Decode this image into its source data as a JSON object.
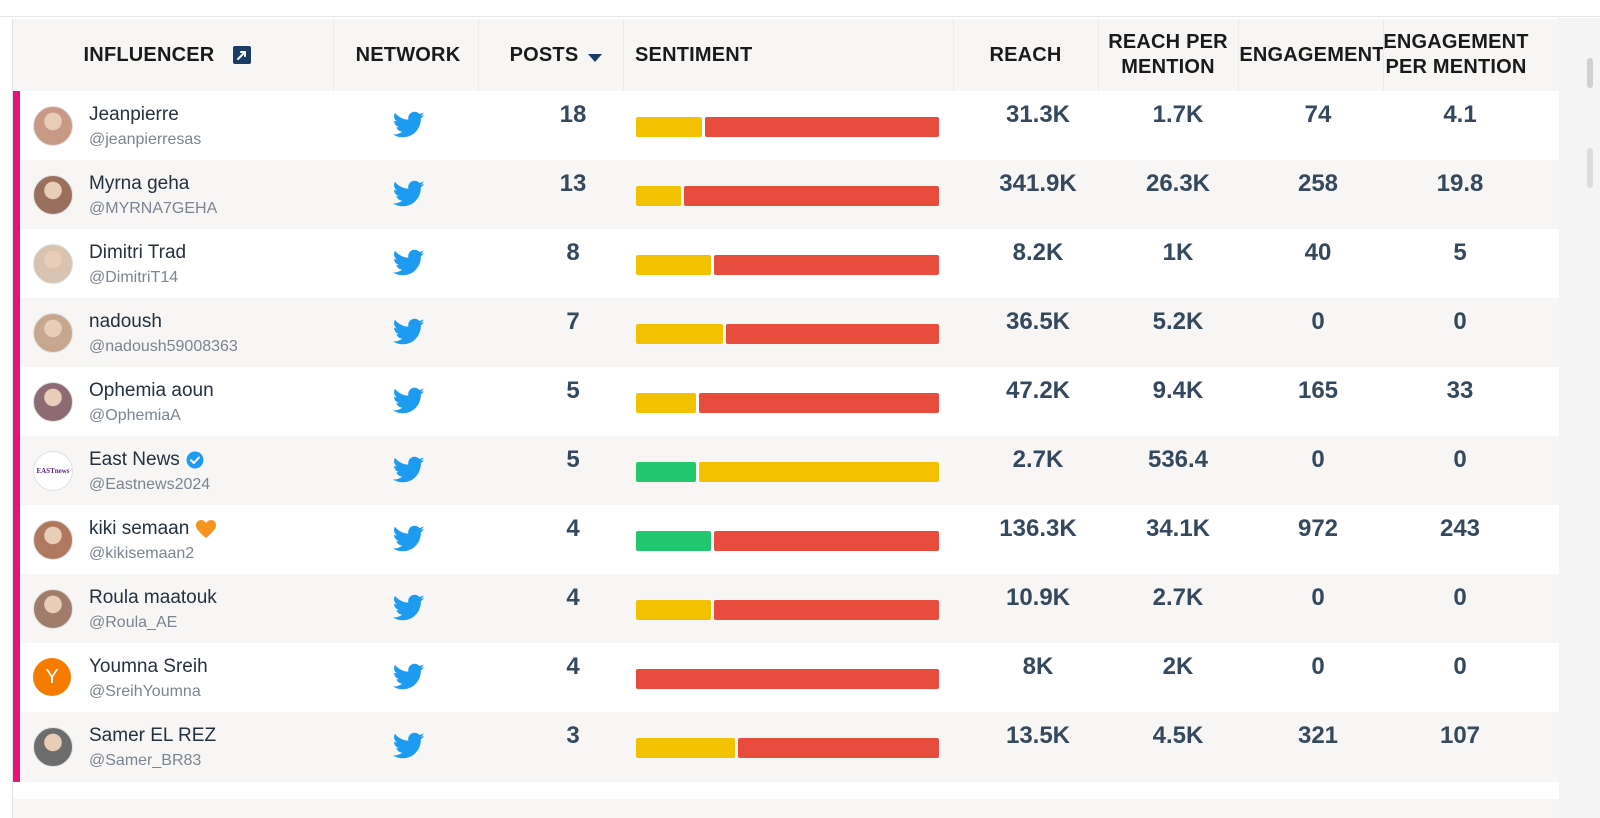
{
  "headers": {
    "influencer": "INFLUENCER",
    "network": "NETWORK",
    "posts": "POSTS",
    "sentiment": "SENTIMENT",
    "reach": "REACH",
    "reach_per_mention_1": "REACH PER",
    "reach_per_mention_2": "MENTION",
    "engagement": "ENGAGEMENT",
    "engagement_per_mention_1": "ENGAGEMENT",
    "engagement_per_mention_2": "PER MENTION"
  },
  "colors": {
    "accent": "#e6137b",
    "twitter": "#1d9bf0",
    "positive": "#21c86f",
    "neutral": "#f2c200",
    "negative": "#e84c3d",
    "verified": "#1d9bf0"
  },
  "rows": [
    {
      "name": "Jeanpierre",
      "handle": "@jeanpierresas",
      "network": "twitter-icon",
      "posts": "18",
      "sentiment": {
        "positive": 0,
        "neutral": 22,
        "negative": 78
      },
      "reach": "31.3K",
      "reach_per_mention": "1.7K",
      "engagement": "74",
      "engagement_per_mention": "4.1",
      "avatar": "photo"
    },
    {
      "name": "Myrna geha",
      "handle": "@MYRNA7GEHA",
      "network": "twitter-icon",
      "posts": "13",
      "sentiment": {
        "positive": 0,
        "neutral": 15,
        "negative": 85
      },
      "reach": "341.9K",
      "reach_per_mention": "26.3K",
      "engagement": "258",
      "engagement_per_mention": "19.8",
      "avatar": "photo"
    },
    {
      "name": "Dimitri Trad",
      "handle": "@DimitriT14",
      "network": "twitter-icon",
      "posts": "8",
      "sentiment": {
        "positive": 0,
        "neutral": 25,
        "negative": 75
      },
      "reach": "8.2K",
      "reach_per_mention": "1K",
      "engagement": "40",
      "engagement_per_mention": "5",
      "avatar": "photo"
    },
    {
      "name": "nadoush",
      "handle": "@nadoush59008363",
      "network": "twitter-icon",
      "posts": "7",
      "sentiment": {
        "positive": 0,
        "neutral": 29,
        "negative": 71
      },
      "reach": "36.5K",
      "reach_per_mention": "5.2K",
      "engagement": "0",
      "engagement_per_mention": "0",
      "avatar": "photo"
    },
    {
      "name": "Ophemia aoun",
      "handle": "@OphemiaA",
      "network": "twitter-icon",
      "posts": "5",
      "sentiment": {
        "positive": 0,
        "neutral": 20,
        "negative": 80
      },
      "reach": "47.2K",
      "reach_per_mention": "9.4K",
      "engagement": "165",
      "engagement_per_mention": "33",
      "avatar": "photo"
    },
    {
      "name": "East News",
      "handle": "@Eastnews2024",
      "network": "twitter-icon",
      "posts": "5",
      "sentiment": {
        "positive": 20,
        "neutral": 80,
        "negative": 0
      },
      "reach": "2.7K",
      "reach_per_mention": "536.4",
      "engagement": "0",
      "engagement_per_mention": "0",
      "avatar": "logo",
      "verified": true,
      "logo_text": "EASTnews"
    },
    {
      "name": "kiki semaan",
      "handle": "@kikisemaan2",
      "network": "twitter-icon",
      "posts": "4",
      "sentiment": {
        "positive": 25,
        "neutral": 0,
        "negative": 75
      },
      "reach": "136.3K",
      "reach_per_mention": "34.1K",
      "engagement": "972",
      "engagement_per_mention": "243",
      "avatar": "photo",
      "emoji": "🧡"
    },
    {
      "name": "Roula maatouk",
      "handle": "@Roula_AE",
      "network": "twitter-icon",
      "posts": "4",
      "sentiment": {
        "positive": 0,
        "neutral": 25,
        "negative": 75
      },
      "reach": "10.9K",
      "reach_per_mention": "2.7K",
      "engagement": "0",
      "engagement_per_mention": "0",
      "avatar": "photo"
    },
    {
      "name": "Youmna Sreih",
      "handle": "@SreihYoumna",
      "network": "twitter-icon",
      "posts": "4",
      "sentiment": {
        "positive": 0,
        "neutral": 0,
        "negative": 100
      },
      "reach": "8K",
      "reach_per_mention": "2K",
      "engagement": "0",
      "engagement_per_mention": "0",
      "avatar": "letter",
      "avatar_letter": "Y"
    },
    {
      "name": "Samer EL REZ",
      "handle": "@Samer_BR83",
      "network": "twitter-icon",
      "posts": "3",
      "sentiment": {
        "positive": 0,
        "neutral": 33,
        "negative": 67
      },
      "reach": "13.5K",
      "reach_per_mention": "4.5K",
      "engagement": "321",
      "engagement_per_mention": "107",
      "avatar": "photo"
    }
  ]
}
